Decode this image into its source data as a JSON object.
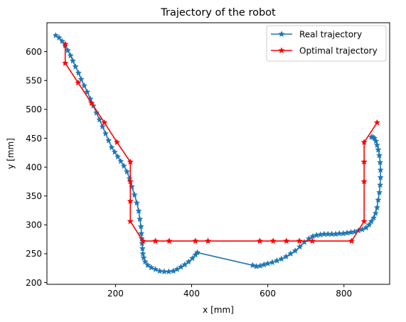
{
  "chart_data": {
    "type": "line",
    "title": "Trajectory of the robot",
    "xlabel": "x [mm]",
    "ylabel": "y [mm]",
    "xlim": [
      20,
      920
    ],
    "ylim": [
      197,
      650
    ],
    "xticks": [
      200,
      400,
      600,
      800
    ],
    "yticks": [
      200,
      250,
      300,
      350,
      400,
      450,
      500,
      550,
      600
    ],
    "legend_position": "upper right",
    "series": [
      {
        "name": "Real trajectory",
        "color": "#1f77b4",
        "marker": "star",
        "x": [
          43,
          52,
          60,
          68,
          75,
          82,
          88,
          95,
          103,
          110,
          118,
          126,
          134,
          142,
          150,
          158,
          166,
          174,
          182,
          190,
          198,
          206,
          214,
          222,
          230,
          237,
          243,
          250,
          256,
          261,
          264,
          267,
          268,
          269,
          270,
          271,
          272,
          274,
          278,
          285,
          294,
          305,
          316,
          328,
          340,
          352,
          362,
          372,
          382,
          392,
          402,
          410,
          415,
          560,
          570,
          580,
          590,
          600,
          612,
          624,
          636,
          648,
          660,
          672,
          684,
          696,
          708,
          718,
          728,
          738,
          748,
          758,
          768,
          778,
          788,
          798,
          808,
          818,
          828,
          838,
          848,
          858,
          866,
          872,
          878,
          883,
          887,
          890,
          893,
          895,
          896,
          896,
          895,
          893,
          890,
          887,
          884,
          880,
          876,
          872
        ],
        "y": [
          628,
          624,
          618,
          610,
          602,
          593,
          584,
          574,
          563,
          552,
          541,
          530,
          518,
          506,
          494,
          482,
          470,
          458,
          446,
          434,
          426,
          418,
          410,
          402,
          392,
          380,
          366,
          352,
          338,
          324,
          310,
          297,
          285,
          276,
          268,
          259,
          250,
          243,
          236,
          230,
          226,
          223,
          220,
          219,
          219,
          220,
          223,
          227,
          231,
          236,
          242,
          248,
          252,
          230,
          228,
          229,
          231,
          233,
          235,
          238,
          241,
          245,
          250,
          255,
          262,
          270,
          276,
          280,
          282,
          283,
          284,
          284,
          284,
          284,
          285,
          285,
          286,
          287,
          288,
          290,
          292,
          295,
          300,
          306,
          312,
          320,
          330,
          343,
          356,
          369,
          382,
          395,
          408,
          420,
          430,
          438,
          445,
          450,
          452,
          452
        ]
      },
      {
        "name": "Optimal trajectory",
        "color": "#ff0000",
        "marker": "star",
        "x": [
          68,
          68,
          102,
          137,
          171,
          204,
          239,
          239,
          239,
          239,
          272,
          305,
          341,
          410,
          443,
          579,
          614,
          649,
          683,
          717,
          820,
          853,
          853,
          853,
          853,
          887
        ],
        "y": [
          613,
          580,
          546,
          511,
          477,
          443,
          409,
          375,
          341,
          306,
          272,
          272,
          272,
          272,
          272,
          272,
          272,
          272,
          272,
          272,
          272,
          306,
          375,
          409,
          443,
          477
        ]
      }
    ]
  }
}
